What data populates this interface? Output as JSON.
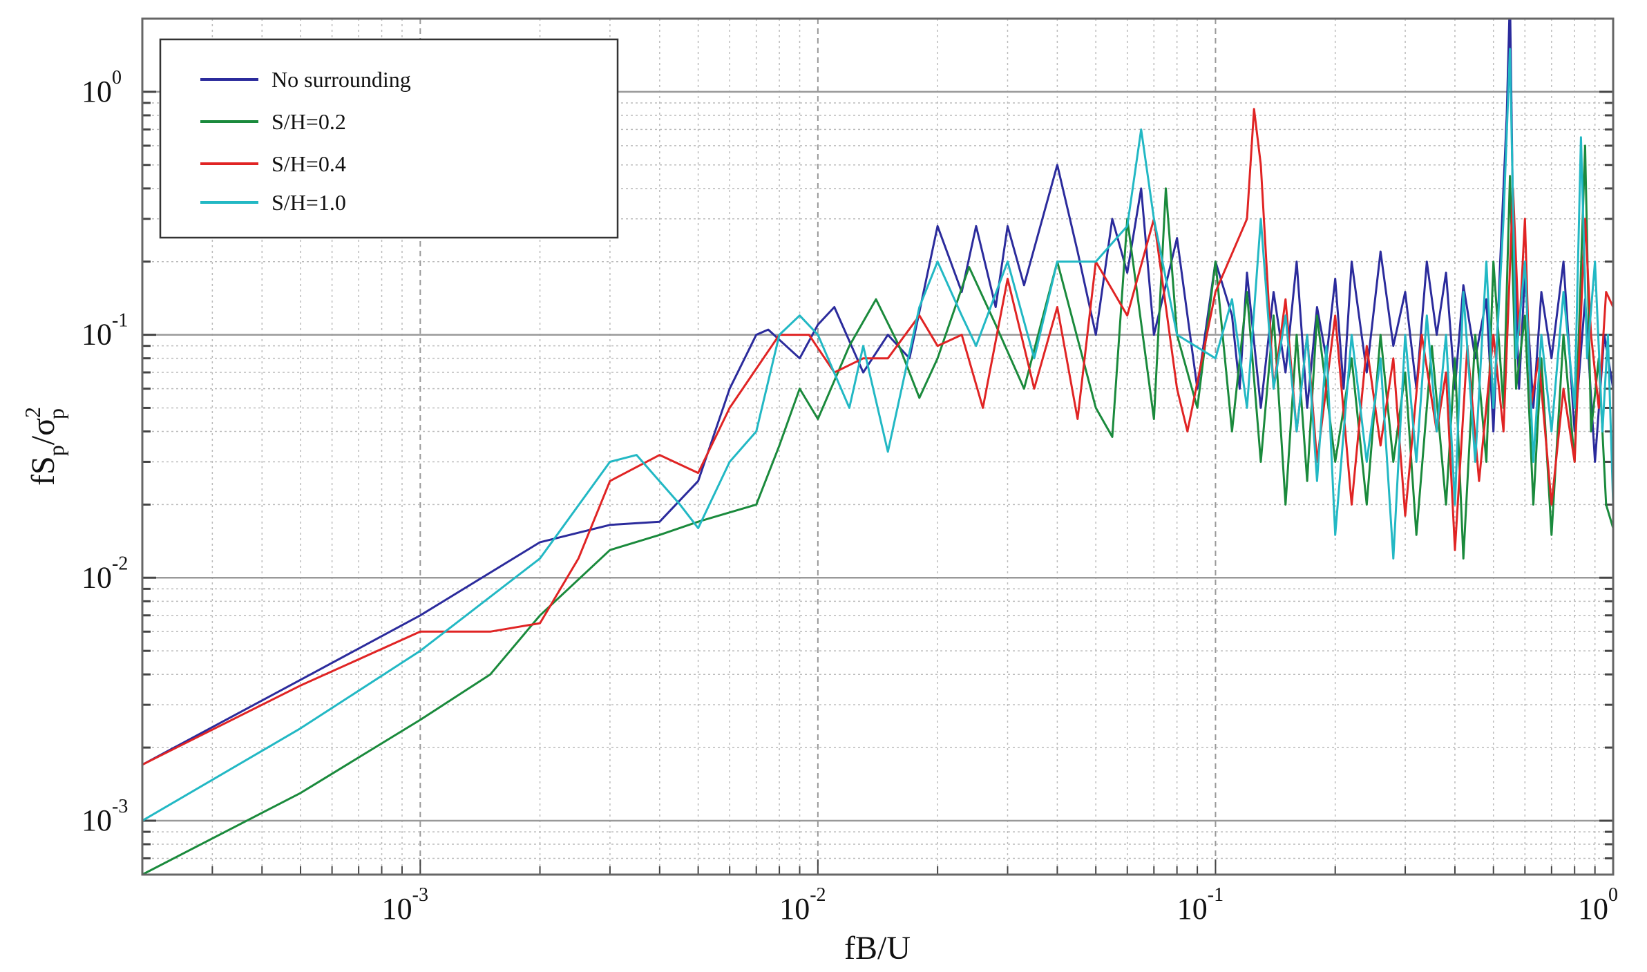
{
  "chart_data": {
    "type": "line",
    "title": "",
    "xlabel": "fB/U",
    "ylabel": {
      "base": "fS",
      "sub1": "p",
      "mid": "/σ",
      "sup": "2",
      "sub2": "p"
    },
    "xscale": "log",
    "yscale": "log",
    "xlim": [
      0.0002,
      1
    ],
    "ylim": [
      0.0006,
      2
    ],
    "grid": true,
    "legend_placement": "top-left",
    "x_ticks": [
      {
        "value": 0.001,
        "base": "10",
        "exp": "-3"
      },
      {
        "value": 0.01,
        "base": "10",
        "exp": "-2"
      },
      {
        "value": 0.1,
        "base": "10",
        "exp": "-1"
      },
      {
        "value": 1,
        "base": "10",
        "exp": "0"
      }
    ],
    "y_ticks": [
      {
        "value": 0.001,
        "base": "10",
        "exp": "-3"
      },
      {
        "value": 0.01,
        "base": "10",
        "exp": "-2"
      },
      {
        "value": 0.1,
        "base": "10",
        "exp": "-1"
      },
      {
        "value": 1,
        "base": "10",
        "exp": "0"
      }
    ],
    "series": [
      {
        "name": "No surrounding",
        "color": "#2b2b9c",
        "points": [
          [
            0.0002,
            0.0017
          ],
          [
            0.0005,
            0.0038
          ],
          [
            0.001,
            0.007
          ],
          [
            0.002,
            0.014
          ],
          [
            0.003,
            0.0165
          ],
          [
            0.004,
            0.017
          ],
          [
            0.005,
            0.025
          ],
          [
            0.006,
            0.06
          ],
          [
            0.007,
            0.1
          ],
          [
            0.0075,
            0.105
          ],
          [
            0.009,
            0.08
          ],
          [
            0.01,
            0.11
          ],
          [
            0.011,
            0.13
          ],
          [
            0.013,
            0.07
          ],
          [
            0.015,
            0.1
          ],
          [
            0.017,
            0.08
          ],
          [
            0.02,
            0.28
          ],
          [
            0.023,
            0.15
          ],
          [
            0.025,
            0.28
          ],
          [
            0.028,
            0.13
          ],
          [
            0.03,
            0.28
          ],
          [
            0.033,
            0.16
          ],
          [
            0.04,
            0.5
          ],
          [
            0.045,
            0.22
          ],
          [
            0.05,
            0.1
          ],
          [
            0.055,
            0.3
          ],
          [
            0.06,
            0.18
          ],
          [
            0.065,
            0.4
          ],
          [
            0.07,
            0.1
          ],
          [
            0.08,
            0.25
          ],
          [
            0.09,
            0.06
          ],
          [
            0.1,
            0.2
          ],
          [
            0.11,
            0.12
          ],
          [
            0.115,
            0.06
          ],
          [
            0.12,
            0.18
          ],
          [
            0.13,
            0.05
          ],
          [
            0.14,
            0.15
          ],
          [
            0.15,
            0.07
          ],
          [
            0.16,
            0.2
          ],
          [
            0.17,
            0.05
          ],
          [
            0.18,
            0.13
          ],
          [
            0.19,
            0.08
          ],
          [
            0.2,
            0.17
          ],
          [
            0.21,
            0.06
          ],
          [
            0.22,
            0.2
          ],
          [
            0.24,
            0.07
          ],
          [
            0.26,
            0.22
          ],
          [
            0.28,
            0.09
          ],
          [
            0.3,
            0.15
          ],
          [
            0.32,
            0.06
          ],
          [
            0.34,
            0.2
          ],
          [
            0.36,
            0.1
          ],
          [
            0.38,
            0.18
          ],
          [
            0.4,
            0.06
          ],
          [
            0.42,
            0.16
          ],
          [
            0.45,
            0.08
          ],
          [
            0.48,
            0.14
          ],
          [
            0.5,
            0.04
          ],
          [
            0.52,
            0.2
          ],
          [
            0.54,
            0.8
          ],
          [
            0.55,
            2.5
          ],
          [
            0.56,
            0.3
          ],
          [
            0.58,
            0.06
          ],
          [
            0.6,
            0.18
          ],
          [
            0.63,
            0.05
          ],
          [
            0.66,
            0.15
          ],
          [
            0.7,
            0.08
          ],
          [
            0.75,
            0.2
          ],
          [
            0.8,
            0.04
          ],
          [
            0.85,
            0.14
          ],
          [
            0.9,
            0.03
          ],
          [
            0.95,
            0.1
          ],
          [
            1.0,
            0.06
          ]
        ]
      },
      {
        "name": "S/H=0.2",
        "color": "#1a8a3c",
        "points": [
          [
            0.0002,
            0.0006
          ],
          [
            0.0005,
            0.0013
          ],
          [
            0.001,
            0.0026
          ],
          [
            0.0015,
            0.004
          ],
          [
            0.002,
            0.007
          ],
          [
            0.003,
            0.013
          ],
          [
            0.004,
            0.015
          ],
          [
            0.005,
            0.017
          ],
          [
            0.007,
            0.02
          ],
          [
            0.008,
            0.035
          ],
          [
            0.009,
            0.06
          ],
          [
            0.01,
            0.045
          ],
          [
            0.012,
            0.09
          ],
          [
            0.014,
            0.14
          ],
          [
            0.016,
            0.09
          ],
          [
            0.018,
            0.055
          ],
          [
            0.02,
            0.08
          ],
          [
            0.024,
            0.19
          ],
          [
            0.028,
            0.11
          ],
          [
            0.033,
            0.06
          ],
          [
            0.04,
            0.2
          ],
          [
            0.05,
            0.05
          ],
          [
            0.055,
            0.038
          ],
          [
            0.06,
            0.3
          ],
          [
            0.07,
            0.045
          ],
          [
            0.075,
            0.4
          ],
          [
            0.08,
            0.1
          ],
          [
            0.09,
            0.05
          ],
          [
            0.1,
            0.2
          ],
          [
            0.11,
            0.04
          ],
          [
            0.12,
            0.15
          ],
          [
            0.13,
            0.03
          ],
          [
            0.14,
            0.12
          ],
          [
            0.15,
            0.02
          ],
          [
            0.16,
            0.1
          ],
          [
            0.17,
            0.025
          ],
          [
            0.18,
            0.12
          ],
          [
            0.2,
            0.03
          ],
          [
            0.22,
            0.08
          ],
          [
            0.24,
            0.02
          ],
          [
            0.26,
            0.1
          ],
          [
            0.28,
            0.03
          ],
          [
            0.3,
            0.07
          ],
          [
            0.32,
            0.015
          ],
          [
            0.35,
            0.09
          ],
          [
            0.38,
            0.02
          ],
          [
            0.4,
            0.08
          ],
          [
            0.42,
            0.012
          ],
          [
            0.45,
            0.1
          ],
          [
            0.48,
            0.03
          ],
          [
            0.5,
            0.2
          ],
          [
            0.53,
            0.05
          ],
          [
            0.55,
            0.45
          ],
          [
            0.57,
            0.06
          ],
          [
            0.6,
            0.12
          ],
          [
            0.63,
            0.02
          ],
          [
            0.66,
            0.08
          ],
          [
            0.7,
            0.015
          ],
          [
            0.75,
            0.1
          ],
          [
            0.8,
            0.03
          ],
          [
            0.85,
            0.6
          ],
          [
            0.88,
            0.04
          ],
          [
            0.92,
            0.08
          ],
          [
            0.96,
            0.02
          ],
          [
            1.0,
            0.016
          ]
        ]
      },
      {
        "name": "S/H=0.4",
        "color": "#e02424",
        "points": [
          [
            0.0002,
            0.0017
          ],
          [
            0.0005,
            0.0036
          ],
          [
            0.001,
            0.006
          ],
          [
            0.0015,
            0.006
          ],
          [
            0.002,
            0.0065
          ],
          [
            0.0025,
            0.012
          ],
          [
            0.003,
            0.025
          ],
          [
            0.004,
            0.032
          ],
          [
            0.005,
            0.027
          ],
          [
            0.006,
            0.05
          ],
          [
            0.008,
            0.1
          ],
          [
            0.0095,
            0.1
          ],
          [
            0.011,
            0.07
          ],
          [
            0.013,
            0.08
          ],
          [
            0.015,
            0.08
          ],
          [
            0.018,
            0.12
          ],
          [
            0.02,
            0.09
          ],
          [
            0.023,
            0.1
          ],
          [
            0.026,
            0.05
          ],
          [
            0.03,
            0.17
          ],
          [
            0.035,
            0.06
          ],
          [
            0.04,
            0.13
          ],
          [
            0.045,
            0.045
          ],
          [
            0.05,
            0.2
          ],
          [
            0.06,
            0.12
          ],
          [
            0.07,
            0.3
          ],
          [
            0.08,
            0.06
          ],
          [
            0.085,
            0.04
          ],
          [
            0.1,
            0.15
          ],
          [
            0.12,
            0.3
          ],
          [
            0.125,
            0.85
          ],
          [
            0.13,
            0.5
          ],
          [
            0.14,
            0.06
          ],
          [
            0.15,
            0.14
          ],
          [
            0.16,
            0.04
          ],
          [
            0.17,
            0.1
          ],
          [
            0.18,
            0.03
          ],
          [
            0.2,
            0.12
          ],
          [
            0.22,
            0.02
          ],
          [
            0.24,
            0.09
          ],
          [
            0.26,
            0.035
          ],
          [
            0.28,
            0.08
          ],
          [
            0.3,
            0.018
          ],
          [
            0.33,
            0.1
          ],
          [
            0.36,
            0.04
          ],
          [
            0.38,
            0.07
          ],
          [
            0.4,
            0.013
          ],
          [
            0.43,
            0.09
          ],
          [
            0.46,
            0.025
          ],
          [
            0.5,
            0.1
          ],
          [
            0.53,
            0.04
          ],
          [
            0.56,
            0.4
          ],
          [
            0.58,
            0.1
          ],
          [
            0.6,
            0.3
          ],
          [
            0.62,
            0.05
          ],
          [
            0.65,
            0.08
          ],
          [
            0.7,
            0.02
          ],
          [
            0.75,
            0.06
          ],
          [
            0.8,
            0.03
          ],
          [
            0.85,
            0.3
          ],
          [
            0.88,
            0.1
          ],
          [
            0.92,
            0.05
          ],
          [
            0.96,
            0.15
          ],
          [
            1.0,
            0.13
          ]
        ]
      },
      {
        "name": "S/H=1.0",
        "color": "#22b8c4",
        "points": [
          [
            0.0002,
            0.001
          ],
          [
            0.0005,
            0.0024
          ],
          [
            0.001,
            0.005
          ],
          [
            0.002,
            0.012
          ],
          [
            0.003,
            0.03
          ],
          [
            0.0035,
            0.032
          ],
          [
            0.0045,
            0.02
          ],
          [
            0.005,
            0.016
          ],
          [
            0.006,
            0.03
          ],
          [
            0.007,
            0.04
          ],
          [
            0.008,
            0.1
          ],
          [
            0.009,
            0.12
          ],
          [
            0.01,
            0.1
          ],
          [
            0.012,
            0.05
          ],
          [
            0.013,
            0.09
          ],
          [
            0.015,
            0.033
          ],
          [
            0.018,
            0.13
          ],
          [
            0.02,
            0.2
          ],
          [
            0.023,
            0.12
          ],
          [
            0.025,
            0.09
          ],
          [
            0.03,
            0.2
          ],
          [
            0.035,
            0.08
          ],
          [
            0.04,
            0.2
          ],
          [
            0.05,
            0.2
          ],
          [
            0.06,
            0.28
          ],
          [
            0.065,
            0.7
          ],
          [
            0.07,
            0.3
          ],
          [
            0.08,
            0.1
          ],
          [
            0.1,
            0.08
          ],
          [
            0.11,
            0.14
          ],
          [
            0.12,
            0.05
          ],
          [
            0.13,
            0.3
          ],
          [
            0.14,
            0.06
          ],
          [
            0.15,
            0.12
          ],
          [
            0.16,
            0.04
          ],
          [
            0.17,
            0.1
          ],
          [
            0.18,
            0.025
          ],
          [
            0.19,
            0.09
          ],
          [
            0.2,
            0.015
          ],
          [
            0.22,
            0.1
          ],
          [
            0.24,
            0.03
          ],
          [
            0.26,
            0.08
          ],
          [
            0.28,
            0.012
          ],
          [
            0.3,
            0.1
          ],
          [
            0.32,
            0.03
          ],
          [
            0.34,
            0.12
          ],
          [
            0.36,
            0.04
          ],
          [
            0.38,
            0.1
          ],
          [
            0.4,
            0.02
          ],
          [
            0.42,
            0.15
          ],
          [
            0.45,
            0.03
          ],
          [
            0.48,
            0.2
          ],
          [
            0.5,
            0.05
          ],
          [
            0.53,
            0.3
          ],
          [
            0.55,
            1.5
          ],
          [
            0.57,
            0.08
          ],
          [
            0.6,
            0.2
          ],
          [
            0.63,
            0.03
          ],
          [
            0.66,
            0.1
          ],
          [
            0.7,
            0.04
          ],
          [
            0.75,
            0.15
          ],
          [
            0.8,
            0.05
          ],
          [
            0.83,
            0.65
          ],
          [
            0.86,
            0.08
          ],
          [
            0.9,
            0.2
          ],
          [
            0.94,
            0.04
          ],
          [
            0.97,
            0.1
          ],
          [
            1.0,
            0.02
          ]
        ]
      }
    ]
  }
}
